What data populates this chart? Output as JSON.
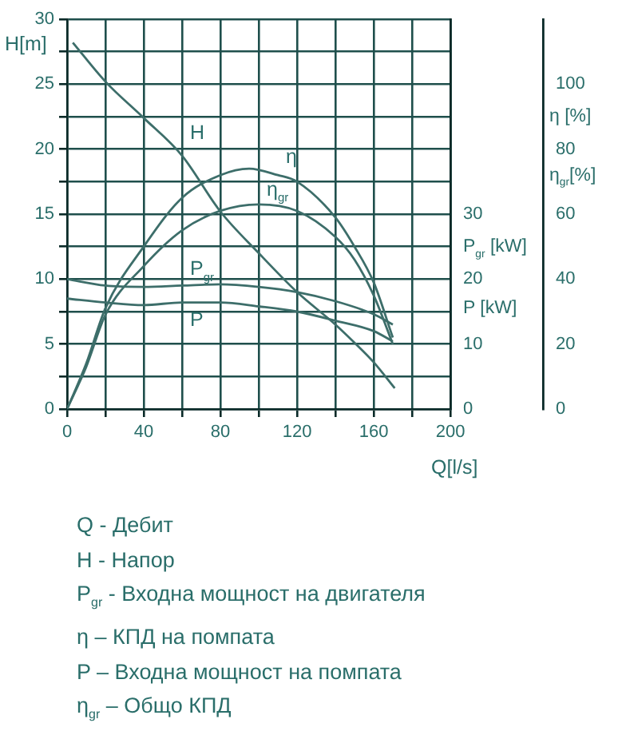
{
  "chart_data": {
    "type": "line",
    "xlabel": "Q[l/s]",
    "ylabel": "H[m]",
    "y2label": "P$_{gr}$ [kW]",
    "y3label": "η [%]",
    "xlim": [
      0,
      200
    ],
    "xticks": [
      0,
      {
        "value": 20,
        "label": null
      },
      40,
      {
        "value": 60,
        "label": null
      },
      80,
      {
        "value": 100,
        "label": null
      },
      120,
      {
        "value": 140,
        "label": null
      },
      160,
      {
        "value": 180,
        "label": null
      },
      200
    ],
    "ylim": [
      0,
      30
    ],
    "yticks": [
      0,
      {
        "value": 2.5,
        "label": null
      },
      5,
      {
        "value": 7.5,
        "label": null
      },
      10,
      {
        "value": 12.5,
        "label": null
      },
      15,
      {
        "value": 17.5,
        "label": null
      },
      20,
      {
        "value": 22.5,
        "label": null
      },
      25,
      {
        "value": 27.5,
        "label": null
      },
      30
    ],
    "y2lim": [
      0,
      60
    ],
    "y2ticks": [
      0,
      10,
      20,
      30
    ],
    "y3lim": [
      0,
      120
    ],
    "y3ticks": [
      0,
      20,
      40,
      60,
      80,
      100
    ],
    "grid": true,
    "legend": false,
    "marker": "none",
    "series": [
      {
        "name": "H",
        "color": "#3d6e6a",
        "axis": "y",
        "x": [
          3,
          20,
          40,
          60,
          80,
          100,
          120,
          140,
          150,
          160,
          171
        ],
        "values": [
          28.2,
          25.2,
          22.4,
          19.5,
          15.2,
          12,
          9,
          6.5,
          5.1,
          3.6,
          1.6
        ]
      },
      {
        "name": "η",
        "color": "#3d6e6a",
        "axis": "y3",
        "x": [
          0,
          10,
          20,
          40,
          60,
          80,
          95,
          110,
          120,
          140,
          150,
          160,
          170
        ],
        "values": [
          0,
          14,
          31,
          50,
          65,
          72,
          74,
          72,
          70,
          59,
          50,
          39,
          22
        ]
      },
      {
        "name": "η$_{gr}$",
        "color": "#3d6e6a",
        "axis": "y3",
        "x": [
          0,
          10,
          20,
          40,
          60,
          80,
          100,
          120,
          140,
          150,
          160,
          170
        ],
        "values": [
          0,
          13,
          29,
          44,
          55,
          61,
          63,
          61,
          53,
          46,
          35,
          20
        ]
      },
      {
        "name": "P$_{gr}$",
        "color": "#3d6e6a",
        "axis": "y2",
        "x": [
          0,
          20,
          40,
          60,
          80,
          100,
          120,
          140,
          160,
          170
        ],
        "values": [
          20,
          19,
          18.8,
          19,
          19.2,
          18.8,
          18,
          16.6,
          14.6,
          13
        ]
      },
      {
        "name": "P",
        "color": "#3d6e6a",
        "axis": "y2",
        "x": [
          0,
          20,
          40,
          60,
          80,
          100,
          120,
          140,
          160,
          170
        ],
        "values": [
          17,
          16.4,
          16,
          16.4,
          16.4,
          15.8,
          15,
          13.6,
          12,
          10.4
        ]
      }
    ],
    "annotations": [
      "P [kW]",
      "η$_{gr}$[%]",
      "Q - Дебит",
      "H - Напор",
      "P$_{gr}$ - Входна мощност на двигателя",
      "η –  КПД на помпата",
      "P – Входна мощност на помпата",
      "η$_{gr}$ – Общо КПД"
    ]
  }
}
